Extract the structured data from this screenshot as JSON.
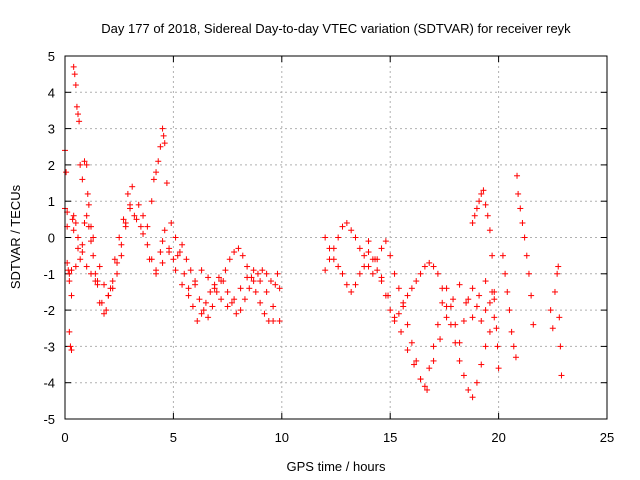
{
  "chart_data": {
    "type": "scatter",
    "title": "Day 177 of 2018, Sidereal Day-to-day VTEC variation (SDTVAR) for receiver reyk",
    "xlabel": "GPS time / hours",
    "ylabel": "SDTVAR / TECUs",
    "xlim": [
      0,
      25
    ],
    "ylim": [
      -5,
      5
    ],
    "xticks": [
      "0",
      "5",
      "10",
      "15",
      "20",
      "25"
    ],
    "yticks": [
      "5",
      "4",
      "3",
      "2",
      "1",
      "0",
      "-1",
      "-2",
      "-3",
      "-4",
      "-5"
    ],
    "grid": true,
    "marker": "+",
    "marker_color": "#ff0000",
    "series": [
      {
        "name": "reyk",
        "x": [
          0.0,
          0.1,
          0.15,
          0.2,
          0.3,
          0.35,
          0.4,
          0.5,
          0.6,
          0.7,
          0.8,
          0.9,
          1.0,
          1.1,
          1.2,
          1.3,
          1.4,
          1.5,
          1.6,
          1.8,
          2.0,
          2.2,
          2.4,
          2.6,
          2.8,
          3.0,
          3.2,
          3.5,
          3.8,
          4.0,
          4.2,
          4.4,
          4.5,
          4.6,
          4.8,
          5.0,
          5.2,
          5.4,
          5.6,
          5.8,
          6.0,
          6.2,
          6.4,
          6.6,
          6.8,
          7.0,
          7.2,
          7.4,
          7.6,
          7.8,
          8.0,
          8.2,
          8.4,
          8.6,
          8.8,
          9.0,
          9.2,
          9.4,
          9.6,
          9.8,
          0.0,
          0.05,
          0.1,
          0.2,
          0.25,
          0.3,
          0.4,
          0.45,
          0.5,
          0.55,
          0.6,
          0.65,
          0.7,
          0.8,
          0.9,
          1.0,
          1.05,
          1.1,
          1.2,
          1.3,
          1.5,
          1.7,
          1.9,
          2.1,
          2.3,
          2.5,
          2.7,
          2.9,
          3.1,
          3.4,
          3.6,
          3.8,
          4.0,
          4.1,
          4.2,
          4.3,
          4.4,
          4.5,
          4.55,
          4.6,
          4.7,
          4.9,
          5.1,
          5.3,
          5.5,
          5.7,
          5.9,
          6.1,
          6.3,
          6.5,
          6.7,
          6.9,
          7.1,
          7.3,
          7.5,
          7.7,
          7.9,
          8.1,
          8.3,
          8.5,
          8.7,
          8.9,
          9.1,
          9.3,
          9.5,
          9.7,
          9.9,
          0.1,
          0.2,
          0.3,
          0.4,
          0.5,
          0.6,
          0.8,
          1.0,
          1.2,
          1.4,
          1.6,
          1.8,
          2.0,
          2.2,
          2.4,
          2.6,
          2.8,
          3.0,
          3.3,
          3.6,
          3.9,
          4.2,
          4.5,
          4.8,
          5.1,
          5.4,
          5.7,
          6.0,
          6.3,
          6.6,
          6.9,
          7.2,
          7.5,
          7.8,
          8.1,
          8.4,
          8.7,
          9.0,
          9.3,
          9.6,
          9.9,
          12.0,
          12.2,
          12.4,
          12.6,
          12.8,
          13.0,
          13.2,
          13.4,
          13.6,
          13.8,
          14.0,
          14.2,
          14.4,
          14.6,
          14.8,
          15.0,
          15.2,
          15.4,
          15.6,
          15.8,
          16.0,
          16.2,
          16.4,
          16.6,
          16.8,
          17.0,
          17.2,
          17.4,
          17.6,
          17.8,
          18.0,
          18.2,
          18.4,
          18.6,
          18.8,
          19.0,
          19.2,
          19.4,
          19.6,
          19.8,
          12.0,
          12.2,
          12.4,
          12.6,
          12.8,
          13.0,
          13.2,
          13.4,
          13.6,
          13.8,
          14.0,
          14.2,
          14.4,
          14.6,
          14.8,
          15.0,
          15.2,
          15.4,
          15.6,
          15.8,
          16.0,
          16.2,
          16.4,
          16.6,
          16.8,
          17.0,
          17.2,
          17.4,
          17.6,
          17.8,
          18.0,
          18.2,
          18.4,
          18.6,
          18.8,
          19.0,
          19.2,
          19.4,
          19.6,
          19.8,
          14.0,
          14.3,
          14.6,
          14.9,
          15.2,
          15.5,
          15.8,
          16.1,
          16.4,
          16.7,
          17.0,
          17.3,
          17.6,
          17.9,
          18.2,
          18.5,
          18.8,
          19.1,
          19.4,
          19.7,
          18.8,
          18.9,
          19.0,
          19.1,
          19.2,
          19.3,
          19.4,
          19.5,
          19.6,
          19.7,
          19.8,
          19.9,
          19.95,
          20.0,
          20.2,
          20.3,
          20.4,
          20.5,
          20.6,
          20.7,
          20.8,
          20.85,
          20.9,
          21.0,
          21.1,
          21.2,
          21.3,
          21.4,
          21.5,
          21.6,
          22.4,
          22.5,
          22.6,
          22.7,
          22.75,
          22.8,
          22.85,
          22.9
        ],
        "y": [
          0.8,
          0.3,
          -0.9,
          -1.2,
          -1.6,
          0.5,
          0.2,
          -0.8,
          -0.3,
          -0.6,
          -0.2,
          0.4,
          0.6,
          0.3,
          -0.1,
          -0.5,
          -1.0,
          -1.3,
          -1.8,
          -2.1,
          -1.6,
          -1.2,
          -0.7,
          -0.2,
          0.4,
          0.8,
          0.6,
          0.3,
          -0.2,
          -0.6,
          -0.9,
          -0.4,
          -0.1,
          0.2,
          -0.3,
          -0.6,
          -0.5,
          -0.2,
          -0.6,
          -0.9,
          -1.3,
          -1.7,
          -2.0,
          -2.2,
          -1.9,
          -1.5,
          -1.2,
          -0.9,
          -0.6,
          -0.4,
          -0.3,
          -0.5,
          -0.8,
          -1.1,
          -1.5,
          -1.8,
          -2.1,
          -2.3,
          -2.3,
          -1.0,
          2.4,
          1.8,
          0.7,
          -2.6,
          -3.0,
          -3.1,
          4.7,
          4.5,
          4.2,
          3.6,
          3.4,
          3.2,
          2.0,
          1.6,
          2.1,
          2.0,
          1.2,
          0.9,
          0.3,
          0.0,
          -1.2,
          -1.8,
          -2.0,
          -1.4,
          -0.6,
          0.0,
          0.5,
          1.2,
          1.4,
          0.9,
          0.6,
          0.3,
          1.0,
          1.6,
          1.8,
          2.1,
          2.5,
          3.0,
          2.8,
          2.6,
          1.5,
          0.4,
          0.0,
          -0.4,
          -1.0,
          -1.4,
          -1.9,
          -2.3,
          -2.1,
          -1.8,
          -1.5,
          -1.3,
          -1.1,
          -1.2,
          -1.5,
          -1.8,
          -2.1,
          -2.0,
          -1.7,
          -1.4,
          -1.2,
          -1.0,
          -0.9,
          -1.0,
          -1.2,
          -1.3,
          -1.4,
          -0.7,
          -1.0,
          -0.9,
          0.6,
          0.4,
          0.0,
          -0.4,
          -0.8,
          -1.0,
          -1.2,
          -0.8,
          -1.3,
          -1.6,
          -1.4,
          -1.0,
          -0.5,
          0.3,
          0.9,
          0.5,
          0.1,
          -0.6,
          -1.0,
          -0.7,
          -0.4,
          -0.9,
          -1.3,
          -1.6,
          -1.2,
          -0.9,
          -1.1,
          -1.4,
          -1.7,
          -1.9,
          -1.7,
          -1.4,
          -1.1,
          -0.9,
          -1.2,
          -1.5,
          -1.9,
          -2.3,
          -0.9,
          -0.6,
          -0.3,
          0.0,
          0.3,
          0.4,
          0.2,
          0.0,
          -0.3,
          -0.5,
          -0.8,
          -1.0,
          -0.6,
          -0.3,
          -0.1,
          -0.5,
          -1.0,
          -1.4,
          -1.9,
          -2.4,
          -2.9,
          -3.4,
          -3.9,
          -4.1,
          -3.6,
          -3.0,
          -2.4,
          -1.8,
          -1.4,
          -1.9,
          -2.4,
          -2.9,
          -2.3,
          -1.7,
          -1.4,
          -1.9,
          -2.3,
          -2.0,
          -1.8,
          -1.7,
          0.0,
          -0.3,
          -0.6,
          -0.8,
          -1.0,
          -1.3,
          -1.5,
          -1.3,
          -1.0,
          -0.8,
          -0.4,
          -0.6,
          -0.9,
          -1.2,
          -1.6,
          -2.0,
          -2.3,
          -2.1,
          -1.8,
          -1.6,
          -1.4,
          -1.2,
          -1.0,
          -0.8,
          -0.7,
          -0.8,
          -1.0,
          -1.4,
          -1.9,
          -2.4,
          -2.9,
          -3.4,
          -3.8,
          -4.2,
          -4.4,
          -4.0,
          -3.5,
          -3.0,
          -2.6,
          -2.2,
          -0.1,
          -0.6,
          -1.1,
          -1.6,
          -2.2,
          -2.6,
          -3.1,
          -3.5,
          -3.9,
          -4.2,
          -3.4,
          -2.8,
          -2.2,
          -1.7,
          -1.3,
          -1.8,
          -2.2,
          -1.6,
          -1.2,
          -1.5,
          0.4,
          0.6,
          0.8,
          1.0,
          1.2,
          1.3,
          0.9,
          0.6,
          0.2,
          -0.5,
          -1.5,
          -2.5,
          -3.0,
          -3.6,
          -0.5,
          -1.0,
          -1.5,
          -2.0,
          -2.6,
          -3.0,
          -3.3,
          1.7,
          1.2,
          0.8,
          0.4,
          0.0,
          -0.5,
          -1.0,
          -1.6,
          -2.4,
          -2.0,
          -2.5,
          -1.5,
          -1.0,
          -0.8,
          -2.2,
          -3.0,
          -3.8
        ]
      }
    ]
  }
}
